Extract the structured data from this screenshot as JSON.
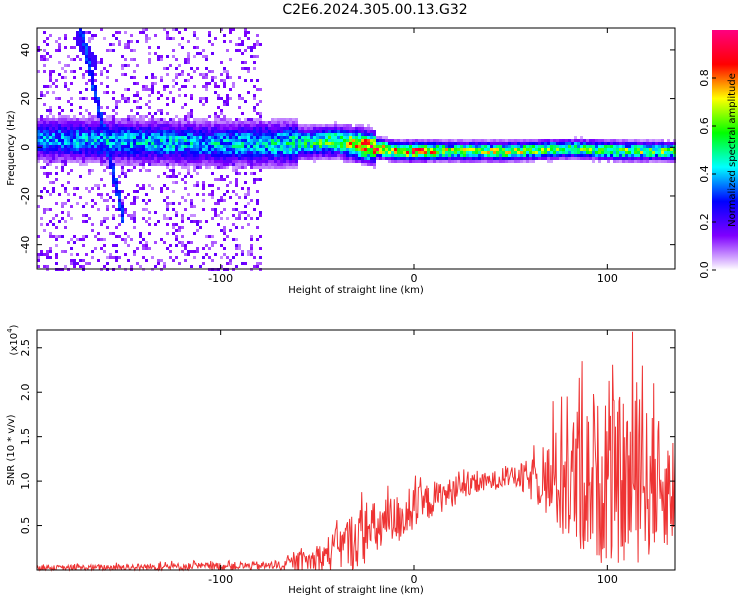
{
  "title": "C2E6.2024.305.00.13.G32",
  "chart_data": [
    {
      "type": "heatmap",
      "xlabel": "Height of straight line (km)",
      "ylabel": "Frequency (Hz)",
      "xlim": [
        -195,
        135
      ],
      "ylim": [
        -50,
        49
      ],
      "xticks": [
        -100,
        0,
        100
      ],
      "yticks": [
        -40,
        -20,
        0,
        20,
        40
      ],
      "colorbar": {
        "label": "Normalized spectral amplitude",
        "range": [
          0,
          1
        ],
        "ticks": [
          "0.0",
          "0.2",
          "0.4",
          "0.6",
          "0.8"
        ],
        "tick_values": [
          0,
          0.2,
          0.4,
          0.6,
          0.8
        ],
        "colors": [
          "#ffffff",
          "#7f00ff",
          "#0000ff",
          "#00ffff",
          "#00ff00",
          "#ffff00",
          "#ff0000",
          "#ff0080"
        ]
      },
      "ridge": [
        {
          "x": -195,
          "f": 4,
          "amp": 0.35
        },
        {
          "x": -150,
          "f": 3,
          "amp": 0.4
        },
        {
          "x": -100,
          "f": 2,
          "amp": 0.4
        },
        {
          "x": -70,
          "f": 2,
          "amp": 0.45
        },
        {
          "x": -40,
          "f": 3,
          "amp": 0.55
        },
        {
          "x": -25,
          "f": 1,
          "amp": 0.85
        },
        {
          "x": -10,
          "f": -1,
          "amp": 0.7
        },
        {
          "x": 0,
          "f": -1,
          "amp": 0.8
        },
        {
          "x": 20,
          "f": -1,
          "amp": 0.6
        },
        {
          "x": 50,
          "f": -1,
          "amp": 0.65
        },
        {
          "x": 80,
          "f": 0,
          "amp": 0.55
        },
        {
          "x": 110,
          "f": -1,
          "amp": 0.6
        },
        {
          "x": 135,
          "f": -1,
          "amp": 0.55
        }
      ]
    },
    {
      "type": "line",
      "xlabel": "Height of straight line (km)",
      "ylabel": "SNR (10 * v/v)",
      "y_multiplier": "(x10",
      "y_multiplier_exp": "4",
      "xlim": [
        -195,
        135
      ],
      "ylim": [
        0,
        2.7
      ],
      "xticks": [
        -100,
        0,
        100
      ],
      "yticks": [
        0.5,
        1.0,
        1.5,
        2.0,
        2.5
      ],
      "color": "#ee3333",
      "envelope": [
        {
          "x": -195,
          "base": 0.02,
          "spread": 0.03
        },
        {
          "x": -70,
          "base": 0.05,
          "spread": 0.05
        },
        {
          "x": -50,
          "base": 0.12,
          "spread": 0.15
        },
        {
          "x": -30,
          "base": 0.35,
          "spread": 0.35
        },
        {
          "x": -10,
          "base": 0.55,
          "spread": 0.3
        },
        {
          "x": 10,
          "base": 0.8,
          "spread": 0.2
        },
        {
          "x": 30,
          "base": 0.95,
          "spread": 0.12
        },
        {
          "x": 50,
          "base": 1.05,
          "spread": 0.1
        },
        {
          "x": 65,
          "base": 1.0,
          "spread": 0.3
        },
        {
          "x": 80,
          "base": 1.0,
          "spread": 0.8
        },
        {
          "x": 100,
          "base": 1.0,
          "spread": 0.95
        },
        {
          "x": 115,
          "base": 1.0,
          "spread": 0.95
        },
        {
          "x": 135,
          "base": 0.9,
          "spread": 0.6
        }
      ],
      "peaks": [
        {
          "x": 113,
          "y": 2.68
        },
        {
          "x": 87,
          "y": 2.35
        },
        {
          "x": 124,
          "y": 2.1
        },
        {
          "x": 72,
          "y": 1.9
        },
        {
          "x": 99,
          "y": 1.85
        },
        {
          "x": 118,
          "y": 2.3
        }
      ]
    }
  ]
}
